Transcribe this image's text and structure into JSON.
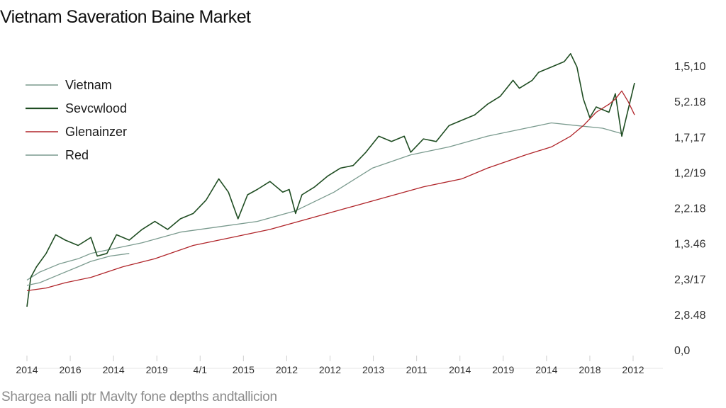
{
  "chart_data": {
    "type": "line",
    "title": "Vietnam Saveration Baine Market",
    "caption": "Shargea nalli ptr Mavlty fone depths andtallicion",
    "xlabel": "",
    "ylabel": "",
    "x_tick_labels": [
      "2014",
      "2016",
      "2014",
      "2019",
      "4/1",
      "2015",
      "2012",
      "2012",
      "2013",
      "2011",
      "2014",
      "2019",
      "2014",
      "2018",
      "2012"
    ],
    "y_tick_labels": [
      "1,5,10",
      "5,2.18",
      "1,7,17",
      "1,2/19",
      "2,2.18",
      "1,3.46",
      "2,3/17",
      "2,8.48",
      "0,0"
    ],
    "y_position": [
      0,
      100
    ],
    "legend_position": "top-left",
    "grid": false,
    "colors": {
      "vietnam": "#7a9a8e",
      "sevcwlood": "#1f4d22",
      "glenainzer": "#b0252a",
      "red": "#7a9a8e"
    },
    "series": [
      {
        "name": "Vietnam",
        "color": "#7a9a8e",
        "values": [
          [
            0,
            14
          ],
          [
            2,
            17
          ],
          [
            5,
            20
          ],
          [
            8,
            22
          ],
          [
            10,
            24
          ],
          [
            14,
            26
          ],
          [
            18,
            28
          ],
          [
            24,
            32
          ],
          [
            30,
            34
          ],
          [
            36,
            36
          ],
          [
            42,
            40
          ],
          [
            48,
            47
          ],
          [
            54,
            56
          ],
          [
            60,
            61
          ],
          [
            66,
            64
          ],
          [
            72,
            68
          ],
          [
            78,
            71
          ],
          [
            82,
            73
          ],
          [
            86,
            72
          ],
          [
            90,
            71
          ],
          [
            93,
            69
          ]
        ]
      },
      {
        "name": "Sevcwlood",
        "color": "#1f4d22",
        "values": [
          [
            0,
            4
          ],
          [
            0.6,
            15
          ],
          [
            1.5,
            19
          ],
          [
            3,
            24
          ],
          [
            4.5,
            31
          ],
          [
            6,
            29
          ],
          [
            8,
            27
          ],
          [
            10,
            30
          ],
          [
            11,
            23
          ],
          [
            12.5,
            24
          ],
          [
            14,
            31
          ],
          [
            16,
            29
          ],
          [
            18,
            33
          ],
          [
            20,
            36
          ],
          [
            22,
            33
          ],
          [
            24,
            37
          ],
          [
            26,
            39
          ],
          [
            28,
            44
          ],
          [
            30,
            52
          ],
          [
            31.5,
            47
          ],
          [
            33,
            37
          ],
          [
            34.5,
            46
          ],
          [
            36,
            48
          ],
          [
            38,
            51
          ],
          [
            40,
            47
          ],
          [
            41,
            48
          ],
          [
            42,
            39
          ],
          [
            43,
            46
          ],
          [
            45,
            49
          ],
          [
            47,
            53
          ],
          [
            49,
            56
          ],
          [
            51,
            57
          ],
          [
            53,
            62
          ],
          [
            55,
            68
          ],
          [
            57,
            66
          ],
          [
            59,
            68
          ],
          [
            60,
            62
          ],
          [
            62,
            67
          ],
          [
            64,
            66
          ],
          [
            66,
            72
          ],
          [
            68,
            74
          ],
          [
            70,
            76
          ],
          [
            72,
            80
          ],
          [
            74,
            83
          ],
          [
            76,
            89
          ],
          [
            77,
            86
          ],
          [
            79,
            89
          ],
          [
            80,
            92
          ],
          [
            82,
            94
          ],
          [
            84,
            96
          ],
          [
            85,
            99
          ],
          [
            86,
            94
          ],
          [
            87,
            82
          ],
          [
            88,
            75
          ],
          [
            89,
            79
          ],
          [
            91,
            77
          ],
          [
            92,
            84
          ],
          [
            93,
            68
          ],
          [
            94,
            78
          ],
          [
            95,
            88
          ]
        ]
      },
      {
        "name": "Glenainzer",
        "color": "#b0252a",
        "values": [
          [
            0,
            10
          ],
          [
            3,
            11
          ],
          [
            6,
            13
          ],
          [
            10,
            15
          ],
          [
            15,
            19
          ],
          [
            20,
            22
          ],
          [
            26,
            27
          ],
          [
            32,
            30
          ],
          [
            38,
            33
          ],
          [
            44,
            37
          ],
          [
            50,
            41
          ],
          [
            56,
            45
          ],
          [
            62,
            49
          ],
          [
            68,
            52
          ],
          [
            72,
            56
          ],
          [
            78,
            61
          ],
          [
            82,
            64
          ],
          [
            85,
            68
          ],
          [
            87,
            72
          ],
          [
            89,
            77
          ],
          [
            91,
            80
          ],
          [
            92,
            82
          ],
          [
            93,
            85
          ],
          [
            94,
            81
          ],
          [
            95,
            76
          ]
        ]
      },
      {
        "name": "Red",
        "color": "#7a9a8e",
        "values": [
          [
            0,
            12
          ],
          [
            2,
            13
          ],
          [
            5,
            16
          ],
          [
            8,
            19
          ],
          [
            10,
            21
          ],
          [
            13,
            23
          ],
          [
            16,
            24
          ]
        ]
      }
    ]
  }
}
